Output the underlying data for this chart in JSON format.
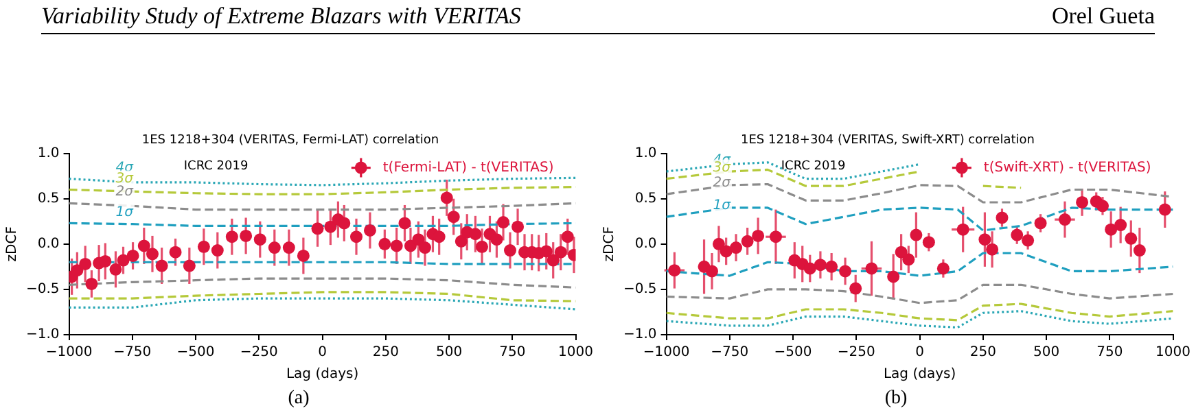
{
  "chart_data": [
    {
      "type": "scatter",
      "title": "1ES 1218+304 (VERITAS, Fermi-LAT) correlation",
      "xlabel": "Lag (days)",
      "ylabel": "zDCF",
      "xlim": [
        -1000,
        1000
      ],
      "xticks": [
        {
          "value": -1000,
          "label": "−1000"
        },
        {
          "value": -750,
          "label": "−750"
        },
        {
          "value": -500,
          "label": "−500"
        },
        {
          "value": -250,
          "label": "−250"
        },
        0,
        250,
        500,
        750,
        1000
      ],
      "ylim": [
        -1,
        1
      ],
      "yticks": [
        {
          "value": -1,
          "label": "−1.0"
        },
        {
          "value": -0.5,
          "label": "−0.5"
        },
        {
          "value": 0,
          "label": "0.0"
        },
        {
          "value": 0.5,
          "label": "0.5"
        },
        {
          "value": 1,
          "label": "1.0"
        }
      ],
      "legend": "top right",
      "annotations": [
        "Variability Study of Extreme Blazars with VERITAS",
        "Orel Gueta",
        "ICRC 2019",
        "(a)"
      ],
      "series": [
        {
          "name": "t(Fermi-LAT) - t(VERITAS)",
          "color": "#dc143c",
          "marker": "circle",
          "x": [
            -989,
            -968,
            -936,
            -911,
            -882,
            -857,
            -816,
            -786,
            -748,
            -704,
            -671,
            -634,
            -580,
            -525,
            -468,
            -414,
            -357,
            -302,
            -246,
            -189,
            -132,
            -75,
            -19,
            32,
            62,
            86,
            134,
            188,
            246,
            293,
            325,
            348,
            379,
            405,
            436,
            461,
            491,
            518,
            548,
            571,
            604,
            630,
            661,
            688,
            714,
            741,
            771,
            798,
            827,
            854,
            884,
            911,
            941,
            968,
            993
          ],
          "values": [
            -0.36,
            -0.29,
            -0.22,
            -0.44,
            -0.21,
            -0.19,
            -0.28,
            -0.18,
            -0.13,
            -0.02,
            -0.11,
            -0.24,
            -0.09,
            -0.24,
            -0.03,
            -0.07,
            0.08,
            0.09,
            0.05,
            -0.04,
            -0.04,
            -0.13,
            0.17,
            0.19,
            0.27,
            0.23,
            0.08,
            0.15,
            0,
            -0.02,
            0.23,
            -0.02,
            0.05,
            -0.04,
            0.11,
            0.08,
            0.51,
            0.3,
            0.03,
            0.13,
            0.11,
            -0.03,
            0.11,
            0.05,
            0.24,
            -0.07,
            0.19,
            -0.09,
            -0.09,
            -0.1,
            -0.08,
            -0.18,
            -0.09,
            0.08,
            -0.12
          ],
          "errors": [
            0.2,
            0.2,
            0.2,
            0.15,
            0.2,
            0.2,
            0.2,
            0.15,
            0.15,
            0.2,
            0.2,
            0.2,
            0.15,
            0.2,
            0.2,
            0.2,
            0.2,
            0.2,
            0.2,
            0.2,
            0.2,
            0.2,
            0.2,
            0.2,
            0.2,
            0.2,
            0.2,
            0.2,
            0.16,
            0.2,
            0.2,
            0.2,
            0.2,
            0.2,
            0.2,
            0.2,
            0.2,
            0.2,
            0.2,
            0.2,
            0.2,
            0.2,
            0.2,
            0.2,
            0.2,
            0.2,
            0.2,
            0.2,
            0.2,
            0.2,
            0.2,
            0.2,
            0.2,
            0.2,
            0.2
          ]
        },
        {
          "name": "4σ",
          "type": "line",
          "color": "#2aa7b5",
          "line_style": "dotted",
          "x": [
            -1000,
            -750,
            -500,
            -250,
            0,
            250,
            500,
            750,
            1000
          ],
          "values": [
            0.72,
            0.68,
            0.68,
            0.66,
            0.65,
            0.67,
            0.7,
            0.72,
            0.73
          ]
        },
        {
          "type": "line",
          "color": "#2aa7b5",
          "line_style": "dotted",
          "x": [
            -1000,
            -750,
            -500,
            -250,
            0,
            250,
            500,
            750,
            1000
          ],
          "values": [
            -0.7,
            -0.7,
            -0.62,
            -0.6,
            -0.6,
            -0.6,
            -0.62,
            -0.67,
            -0.72
          ]
        },
        {
          "name": "3σ",
          "type": "line",
          "color": "#b5c93a",
          "line_style": "dashed",
          "x": [
            -1000,
            -750,
            -500,
            -250,
            0,
            250,
            500,
            750,
            1000
          ],
          "values": [
            0.6,
            0.58,
            0.56,
            0.55,
            0.55,
            0.57,
            0.6,
            0.62,
            0.63
          ]
        },
        {
          "type": "line",
          "color": "#b5c93a",
          "line_style": "dashed",
          "x": [
            -1000,
            -750,
            -500,
            -250,
            0,
            250,
            500,
            750,
            1000
          ],
          "values": [
            -0.6,
            -0.6,
            -0.57,
            -0.55,
            -0.53,
            -0.53,
            -0.55,
            -0.62,
            -0.63
          ]
        },
        {
          "name": "2σ",
          "type": "line",
          "color": "#8c8c8c",
          "line_style": "dashed",
          "x": [
            -1000,
            -750,
            -500,
            -250,
            0,
            250,
            500,
            750,
            1000
          ],
          "values": [
            0.45,
            0.42,
            0.38,
            0.38,
            0.38,
            0.38,
            0.4,
            0.42,
            0.45
          ]
        },
        {
          "type": "line",
          "color": "#8c8c8c",
          "line_style": "dashed",
          "x": [
            -1000,
            -750,
            -500,
            -250,
            0,
            250,
            500,
            750,
            1000
          ],
          "values": [
            -0.45,
            -0.42,
            -0.4,
            -0.38,
            -0.38,
            -0.38,
            -0.4,
            -0.45,
            -0.48
          ]
        },
        {
          "name": "1σ",
          "type": "line",
          "color": "#1f9fbf",
          "line_style": "dashed",
          "x": [
            -1000,
            -750,
            -500,
            -250,
            0,
            250,
            500,
            750,
            1000
          ],
          "values": [
            0.23,
            0.22,
            0.2,
            0.2,
            0.2,
            0.2,
            0.2,
            0.22,
            0.23
          ]
        },
        {
          "type": "line",
          "color": "#1f9fbf",
          "line_style": "dashed",
          "x": [
            -1000,
            -750,
            -500,
            -250,
            0,
            250,
            500,
            750,
            1000
          ],
          "values": [
            -0.2,
            -0.2,
            -0.2,
            -0.2,
            -0.2,
            -0.2,
            -0.22,
            -0.22,
            -0.22
          ]
        }
      ]
    },
    {
      "type": "scatter",
      "title": "1ES 1218+304 (VERITAS, Swift-XRT) correlation",
      "xlabel": "Lag (days)",
      "ylabel": "zDCF",
      "xlim": [
        -1000,
        1000
      ],
      "xticks": [
        {
          "value": -1000,
          "label": "−1000"
        },
        {
          "value": -750,
          "label": "−750"
        },
        {
          "value": -500,
          "label": "−500"
        },
        {
          "value": -250,
          "label": "−250"
        },
        0,
        250,
        500,
        750,
        1000
      ],
      "ylim": [
        -1,
        1
      ],
      "yticks": [
        {
          "value": -1,
          "label": "−1.0"
        },
        {
          "value": -0.5,
          "label": "−0.5"
        },
        {
          "value": 0,
          "label": "0.0"
        },
        {
          "value": 0.5,
          "label": "0.5"
        },
        {
          "value": 1,
          "label": "1.0"
        }
      ],
      "legend": "top right",
      "annotations": [
        "ICRC 2019",
        "(b)"
      ],
      "series": [
        {
          "name": "t(Swift-XRT) - t(VERITAS)",
          "color": "#dc143c",
          "marker": "circle",
          "x": [
            -968,
            -851,
            -820,
            -793,
            -764,
            -725,
            -680,
            -638,
            -568,
            -494,
            -463,
            -433,
            -392,
            -348,
            -294,
            -253,
            -190,
            -104,
            -73,
            -44,
            -14,
            36,
            93,
            171,
            257,
            286,
            325,
            384,
            427,
            477,
            573,
            641,
            697,
            722,
            755,
            793,
            834,
            868,
            968
          ],
          "values": [
            -0.29,
            -0.25,
            -0.3,
            0,
            -0.08,
            -0.04,
            0.03,
            0.09,
            0.08,
            -0.18,
            -0.22,
            -0.27,
            -0.23,
            -0.25,
            -0.3,
            -0.49,
            -0.27,
            -0.36,
            -0.09,
            -0.17,
            0.1,
            0.02,
            -0.27,
            0.16,
            0.05,
            -0.06,
            0.29,
            0.1,
            0.04,
            0.23,
            0.27,
            0.46,
            0.47,
            0.42,
            0.16,
            0.21,
            0.06,
            -0.07,
            0.38
          ],
          "errors": [
            0.2,
            0.3,
            0.2,
            0.2,
            0.15,
            0.15,
            0.15,
            0.2,
            0.3,
            0.2,
            0.2,
            0.15,
            0.15,
            0.15,
            0.15,
            0.15,
            0.3,
            0.25,
            0.2,
            0.15,
            0.25,
            0.1,
            0.1,
            0.25,
            0.3,
            0.2,
            0.1,
            0.1,
            0.1,
            0.1,
            0.2,
            0.15,
            0.1,
            0.1,
            0.2,
            0.2,
            0.2,
            0.25,
            0.2
          ],
          "xerrors": [
            40,
            null,
            null,
            null,
            null,
            null,
            null,
            null,
            40,
            null,
            null,
            null,
            null,
            null,
            null,
            null,
            40,
            null,
            null,
            null,
            null,
            null,
            null,
            45,
            null,
            null,
            null,
            null,
            null,
            null,
            40,
            null,
            null,
            null,
            null,
            null,
            null,
            null,
            null
          ]
        },
        {
          "name": "4σ",
          "type": "line",
          "color": "#2aa7b5",
          "line_style": "dotted",
          "x": [
            -1000,
            -750,
            -600,
            -450,
            -300,
            -150,
            0
          ],
          "values": [
            0.8,
            0.88,
            0.9,
            0.72,
            0.72,
            0.8,
            0.88
          ]
        },
        {
          "type": "line",
          "color": "#2aa7b5",
          "line_style": "dotted",
          "x": [
            -1000,
            -750,
            -600,
            -450,
            -300,
            -150,
            0,
            150,
            250,
            400,
            600,
            750,
            1000
          ],
          "values": [
            -0.85,
            -0.9,
            -0.9,
            -0.8,
            -0.8,
            -0.85,
            -0.9,
            -0.92,
            -0.76,
            -0.74,
            -0.85,
            -0.88,
            -0.82
          ]
        },
        {
          "name": "3σ",
          "type": "line",
          "color": "#b5c93a",
          "line_style": "dashed",
          "x": [
            -1000,
            -750,
            -600,
            -450,
            -300,
            -150,
            0,
            150,
            250,
            400
          ],
          "values": [
            0.72,
            0.8,
            0.82,
            0.64,
            0.64,
            0.72,
            0.8,
            null,
            0.64,
            0.62
          ]
        },
        {
          "type": "line",
          "color": "#b5c93a",
          "line_style": "dashed",
          "x": [
            -1000,
            -750,
            -600,
            -450,
            -300,
            -150,
            0,
            150,
            250,
            400,
            600,
            750,
            1000
          ],
          "values": [
            -0.76,
            -0.82,
            -0.82,
            -0.72,
            -0.72,
            -0.76,
            -0.82,
            -0.84,
            -0.68,
            -0.66,
            -0.76,
            -0.8,
            -0.74
          ]
        },
        {
          "name": "2σ",
          "type": "line",
          "color": "#8c8c8c",
          "line_style": "dashed",
          "x": [
            -1000,
            -750,
            -600,
            -450,
            -300,
            -150,
            0,
            150,
            250,
            400,
            600,
            750,
            1000
          ],
          "values": [
            0.55,
            0.65,
            0.66,
            0.48,
            0.48,
            0.56,
            0.65,
            0.64,
            0.46,
            0.46,
            0.6,
            0.6,
            0.52
          ]
        },
        {
          "type": "line",
          "color": "#8c8c8c",
          "line_style": "dashed",
          "x": [
            -1000,
            -750,
            -600,
            -450,
            -300,
            -150,
            0,
            150,
            250,
            400,
            600,
            750,
            1000
          ],
          "values": [
            -0.58,
            -0.6,
            -0.5,
            -0.5,
            -0.52,
            -0.58,
            -0.65,
            -0.62,
            -0.45,
            -0.45,
            -0.55,
            -0.6,
            -0.55
          ]
        },
        {
          "name": "1σ",
          "type": "line",
          "color": "#1f9fbf",
          "line_style": "dashed",
          "x": [
            -1000,
            -750,
            -600,
            -450,
            -300,
            -150,
            0,
            150,
            250,
            400,
            600,
            750,
            1000
          ],
          "values": [
            0.3,
            0.4,
            0.4,
            0.22,
            0.3,
            0.38,
            0.4,
            0.38,
            0.15,
            0.2,
            0.4,
            0.38,
            0.38
          ]
        },
        {
          "type": "line",
          "color": "#1f9fbf",
          "line_style": "dashed",
          "x": [
            -1000,
            -750,
            -600,
            -450,
            -300,
            -150,
            0,
            150,
            250,
            400,
            600,
            750,
            1000
          ],
          "values": [
            -0.3,
            -0.35,
            -0.2,
            -0.22,
            -0.3,
            -0.3,
            -0.35,
            -0.3,
            -0.1,
            -0.1,
            -0.3,
            -0.3,
            -0.25
          ]
        }
      ]
    }
  ]
}
